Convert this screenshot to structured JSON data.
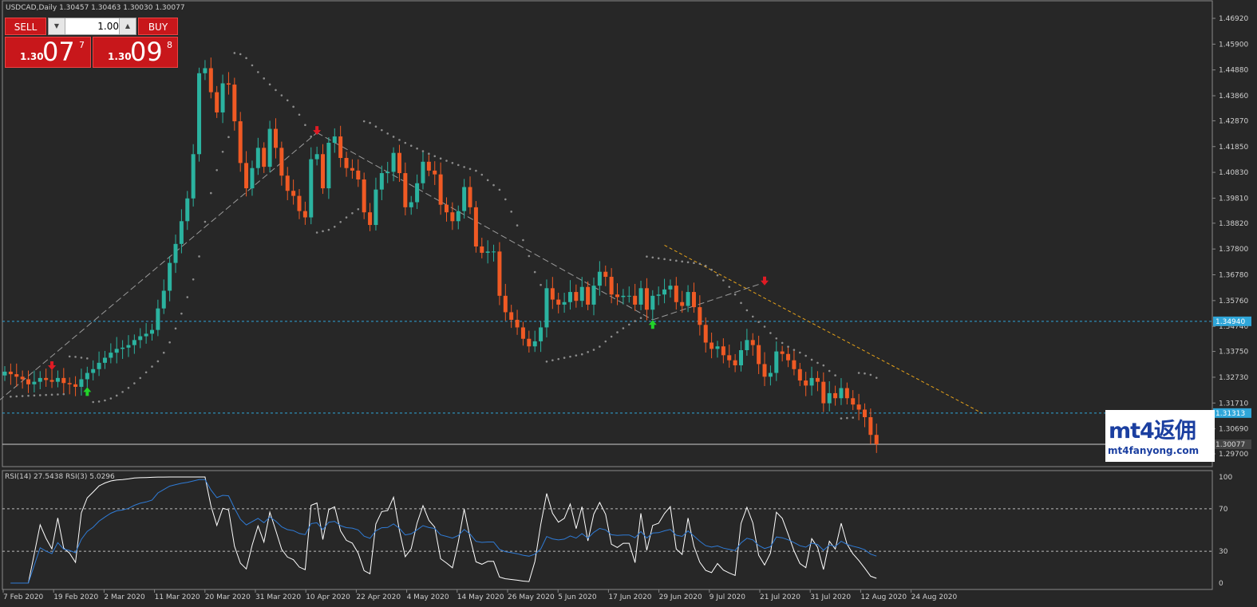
{
  "window": {
    "title": "USDCAD,Daily  1.30457 1.30463 1.30030 1.30077"
  },
  "trade_panel": {
    "sell_label": "SELL",
    "buy_label": "BUY",
    "lot_value": "1.00",
    "sell_price_prefix": "1.30",
    "sell_price_big": "07",
    "sell_price_sup": "7",
    "buy_price_prefix": "1.30",
    "buy_price_big": "09",
    "buy_price_sup": "8"
  },
  "watermark": {
    "brand": "mt4返佣",
    "url": "mt4fanyong.com"
  },
  "rsi_label": "RSI(14) 27.5438  RSI(3) 5.0296",
  "colors": {
    "background": "#272727",
    "bull": "#2bb3a0",
    "bear": "#f05a24",
    "sar": "#8c8c8c",
    "hline": "#2fa6d9",
    "trendline": "#e6a21a",
    "rsi14": "#2f7bd6",
    "rsi3": "#ffffff",
    "sell_arrow": "#e01b24",
    "buy_arrow": "#22d42a"
  },
  "chart_data": [
    {
      "type": "candlestick",
      "symbol": "USDCAD",
      "timeframe": "Daily",
      "ohlc_last": {
        "open": 1.30457,
        "high": 1.30463,
        "low": 1.3003,
        "close": 1.30077
      },
      "ylim": [
        1.297,
        1.4692
      ],
      "y_ticks": [
        "1.46920",
        "1.45900",
        "1.44880",
        "1.43860",
        "1.42870",
        "1.41850",
        "1.40830",
        "1.39810",
        "1.38820",
        "1.37800",
        "1.36780",
        "1.35760",
        "1.34740",
        "1.33750",
        "1.32730",
        "1.31710",
        "1.30690",
        "1.29700"
      ],
      "x_ticks": [
        "7 Feb 2020",
        "19 Feb 2020",
        "2 Mar 2020",
        "11 Mar 2020",
        "20 Mar 2020",
        "31 Mar 2020",
        "10 Apr 2020",
        "22 Apr 2020",
        "4 May 2020",
        "14 May 2020",
        "26 May 2020",
        "5 Jun 2020",
        "17 Jun 2020",
        "29 Jun 2020",
        "9 Jul 2020",
        "21 Jul 2020",
        "31 Jul 2020",
        "12 Aug 2020",
        "24 Aug 2020"
      ],
      "horizontal_lines": [
        {
          "value": 1.3494,
          "label": "1.34940",
          "style": "dashed"
        },
        {
          "value": 1.31313,
          "label": "1.31313",
          "style": "dashed"
        },
        {
          "value": 1.30077,
          "label": "1.30077",
          "style": "solid"
        }
      ],
      "closes": [
        1.3295,
        1.3285,
        1.3275,
        1.3265,
        1.3245,
        1.3255,
        1.327,
        1.3262,
        1.3255,
        1.327,
        1.325,
        1.3245,
        1.3235,
        1.3265,
        1.329,
        1.3305,
        1.333,
        1.335,
        1.337,
        1.3385,
        1.339,
        1.34,
        1.342,
        1.3435,
        1.3445,
        1.346,
        1.3545,
        1.3615,
        1.3725,
        1.38,
        1.389,
        1.398,
        1.4155,
        1.4475,
        1.4495,
        1.44,
        1.432,
        1.4435,
        1.443,
        1.4285,
        1.412,
        1.402,
        1.41,
        1.418,
        1.4105,
        1.4255,
        1.418,
        1.407,
        1.401,
        1.399,
        1.393,
        1.3905,
        1.4135,
        1.4155,
        1.402,
        1.42,
        1.4225,
        1.414,
        1.41,
        1.409,
        1.4055,
        1.3925,
        1.3875,
        1.4015,
        1.408,
        1.4085,
        1.416,
        1.408,
        1.3945,
        1.3965,
        1.404,
        1.4125,
        1.409,
        1.4075,
        1.3955,
        1.3925,
        1.389,
        1.393,
        1.4025,
        1.3945,
        1.379,
        1.3765,
        1.377,
        1.377,
        1.3595,
        1.353,
        1.35,
        1.347,
        1.3425,
        1.3395,
        1.3415,
        1.347,
        1.3625,
        1.358,
        1.356,
        1.357,
        1.361,
        1.3575,
        1.363,
        1.356,
        1.3635,
        1.369,
        1.367,
        1.36,
        1.359,
        1.3595,
        1.3595,
        1.356,
        1.3625,
        1.354,
        1.3595,
        1.36,
        1.362,
        1.3635,
        1.357,
        1.3555,
        1.361,
        1.355,
        1.348,
        1.341,
        1.3385,
        1.3395,
        1.336,
        1.334,
        1.332,
        1.338,
        1.342,
        1.34,
        1.3325,
        1.3275,
        1.329,
        1.3375,
        1.3365,
        1.334,
        1.3305,
        1.326,
        1.324,
        1.327,
        1.3255,
        1.317,
        1.321,
        1.319,
        1.323,
        1.319,
        1.3165,
        1.3145,
        1.3115,
        1.3045,
        1.3008
      ],
      "sar_dots": "parabolic SAR shown as grey dotted steps above and below price"
    },
    {
      "type": "line",
      "indicator": "RSI",
      "series": [
        {
          "name": "RSI(14)",
          "last": 27.5438
        },
        {
          "name": "RSI(3)",
          "last": 5.0296
        }
      ],
      "ylim": [
        0,
        100
      ],
      "y_ticks": [
        "100",
        "70",
        "30",
        "0"
      ],
      "levels": [
        70,
        30
      ]
    }
  ]
}
